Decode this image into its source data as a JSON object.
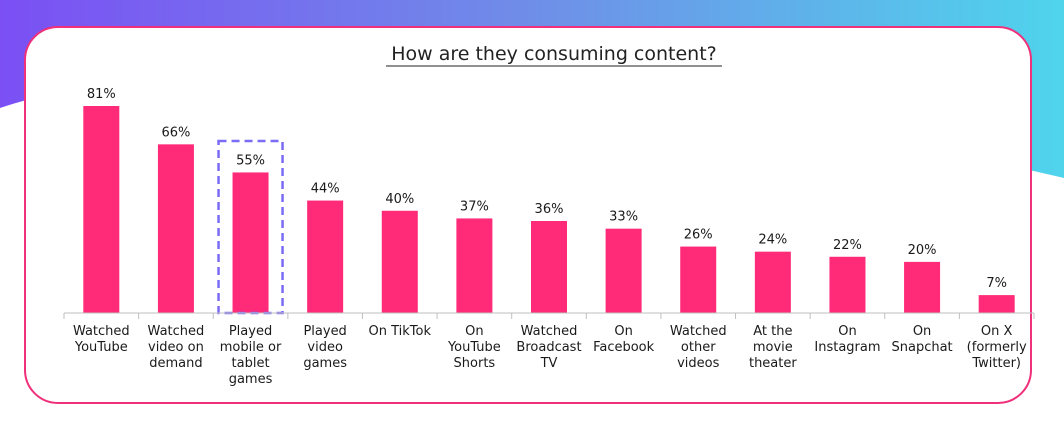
{
  "chart_data": {
    "type": "bar",
    "title": "How are they consuming content?",
    "xlabel": "",
    "ylabel": "",
    "ylim": [
      0,
      81
    ],
    "unit": "%",
    "categories": [
      [
        "Watched",
        "YouTube"
      ],
      [
        "Watched",
        "video on",
        "demand"
      ],
      [
        "Played",
        "mobile or",
        "tablet",
        "games"
      ],
      [
        "Played",
        "video",
        "games"
      ],
      [
        "On TikTok"
      ],
      [
        "On",
        "YouTube",
        "Shorts"
      ],
      [
        "Watched",
        "Broadcast",
        "TV"
      ],
      [
        "On",
        "Facebook"
      ],
      [
        "Watched",
        "other",
        "videos"
      ],
      [
        "At the",
        "movie",
        "theater"
      ],
      [
        "On",
        "Instagram"
      ],
      [
        "On",
        "Snapchat"
      ],
      [
        "On X",
        "(formerly",
        "Twitter)"
      ]
    ],
    "values": [
      81,
      66,
      55,
      44,
      40,
      37,
      36,
      33,
      26,
      24,
      22,
      20,
      7
    ],
    "data_labels": [
      "81%",
      "66%",
      "55%",
      "44%",
      "40%",
      "37%",
      "36%",
      "33%",
      "26%",
      "24%",
      "22%",
      "20%",
      "7%"
    ],
    "highlighted_index": 2,
    "bar_color": "#ff2a78",
    "highlight_color": "#7b6cf6",
    "axis_color": "#bfbfbf",
    "border_color": "#f0307a"
  }
}
